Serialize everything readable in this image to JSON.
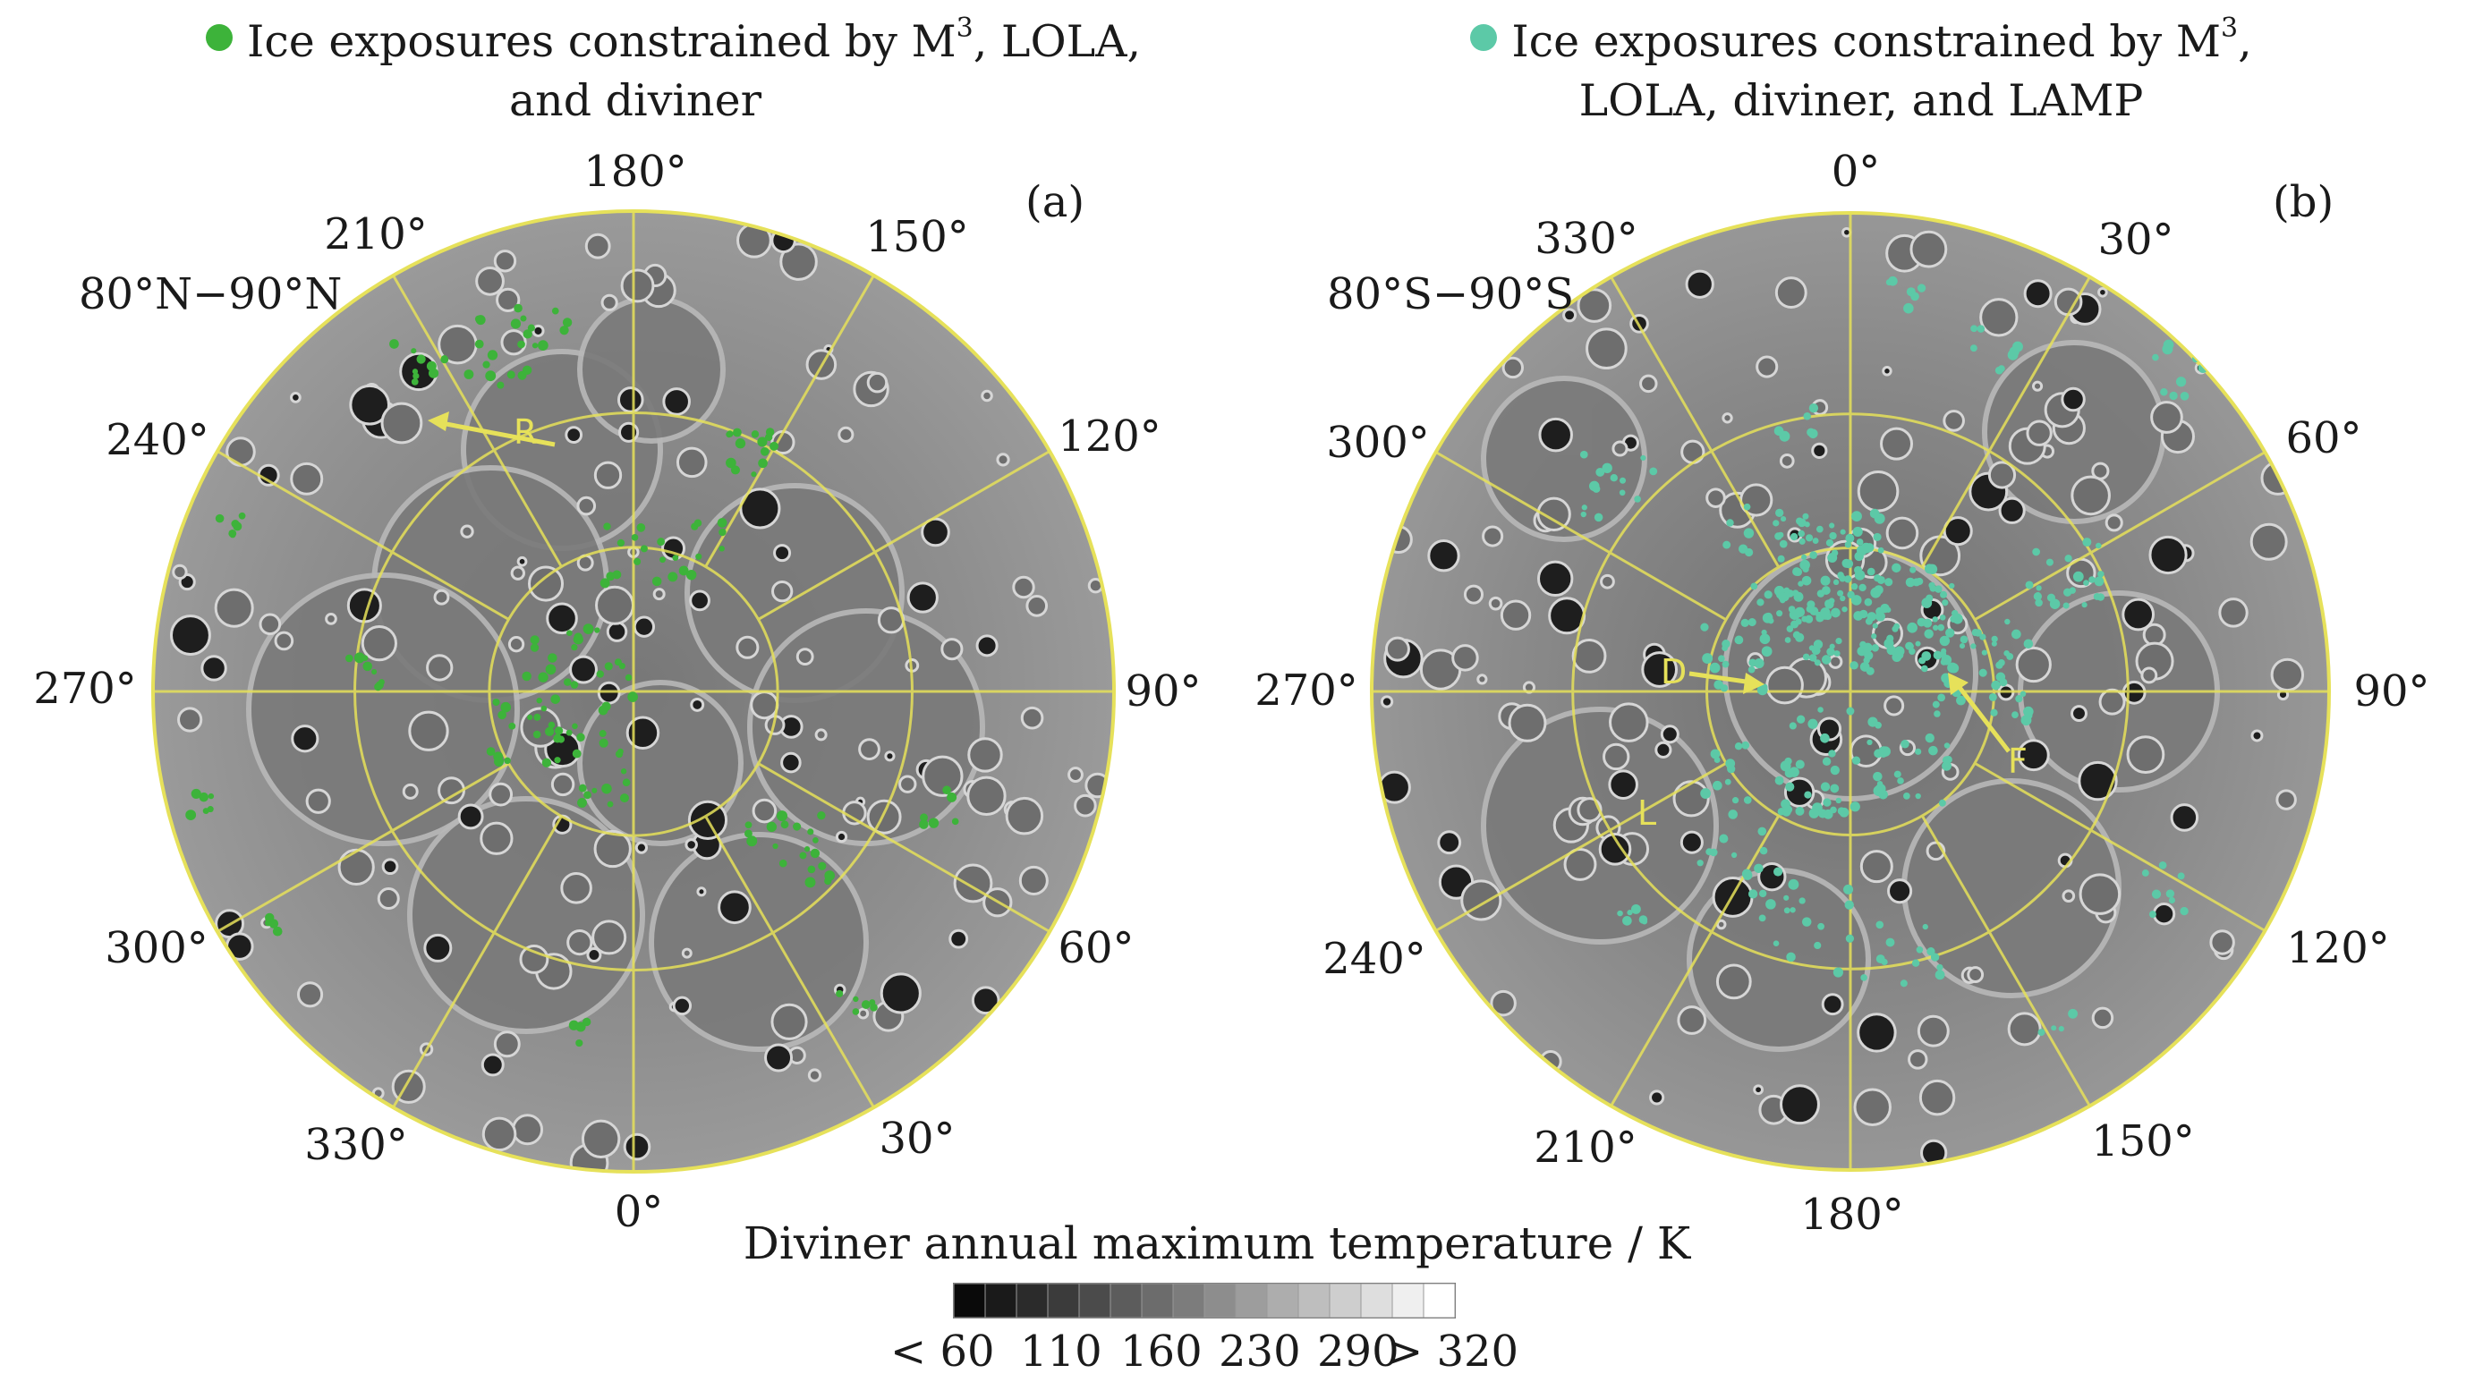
{
  "panels": [
    {
      "id": "a",
      "legend_lines": [
        "Ice exposures constrained by M",
        "3",
        ", LOLA,",
        "and diviner"
      ],
      "dot_color": "#3db33a",
      "panel_label": "(a)",
      "region_label": "80°N−90°N",
      "longitude_labels": [
        "180°",
        "150°",
        "120°",
        "90°",
        "60°",
        "30°",
        "0°",
        "330°",
        "300°",
        "270°",
        "240°",
        "210°"
      ],
      "feature_labels": [
        "R"
      ]
    },
    {
      "id": "b",
      "legend_lines": [
        "Ice exposures constrained by M",
        "3",
        ",",
        "LOLA, diviner, and LAMP"
      ],
      "dot_color": "#5cc9a7",
      "panel_label": "(b)",
      "region_label": "80°S−90°S",
      "longitude_labels": [
        "0°",
        "30°",
        "60°",
        "90°",
        "120°",
        "150°",
        "180°",
        "210°",
        "240°",
        "270°",
        "300°",
        "330°"
      ],
      "feature_labels": [
        "D",
        "F",
        "L"
      ]
    }
  ],
  "colorbar": {
    "title": "Diviner annual maximum temperature / K",
    "ticks": [
      "< 60",
      "110",
      "160",
      "230",
      "290",
      "> 320"
    ],
    "range_K": [
      60,
      320
    ]
  },
  "colors": {
    "grid": "#e6e15a",
    "map_base": "#8c8c8c",
    "dark_shadow": "#1e1e1e"
  }
}
